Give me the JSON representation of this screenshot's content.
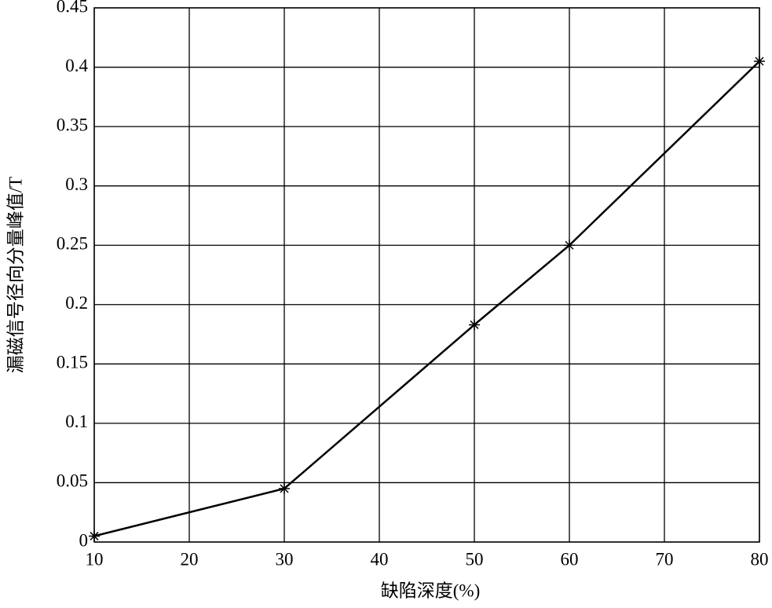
{
  "chart_data": {
    "type": "line",
    "x_label": "缺陷深度(%)",
    "y_label": "漏磁信号径向分量峰值/T",
    "x": [
      10,
      30,
      50,
      60,
      80
    ],
    "values": [
      0.005,
      0.045,
      0.183,
      0.25,
      0.405
    ],
    "color": "#000000",
    "marker": "asterisk",
    "xlim": [
      10,
      80
    ],
    "xticks": [
      10,
      20,
      30,
      40,
      50,
      60,
      70,
      80
    ],
    "ylim": [
      0,
      0.45
    ],
    "yticks": [
      0,
      0.05,
      0.1,
      0.15,
      0.2,
      0.25,
      0.3,
      0.35,
      0.4,
      0.45
    ],
    "grid": true
  }
}
